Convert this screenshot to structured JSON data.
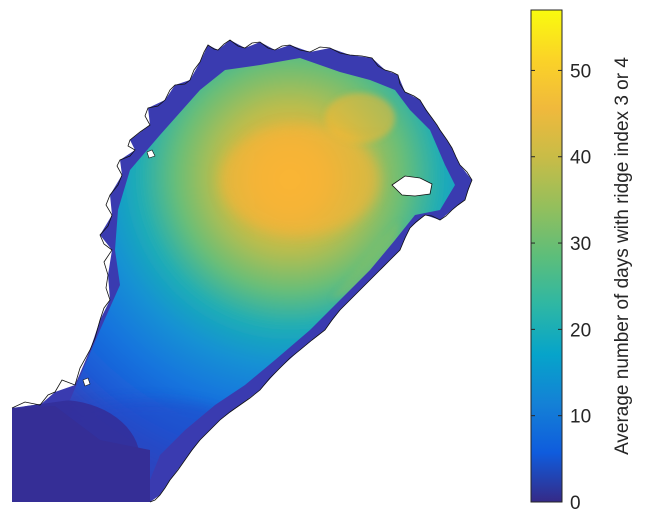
{
  "colorbar": {
    "label": "Average number of days with ridge index 3 or 4",
    "min": 0,
    "max": 57,
    "ticks": [
      {
        "value": 0,
        "label": "0"
      },
      {
        "value": 10,
        "label": "10"
      },
      {
        "value": 20,
        "label": "20"
      },
      {
        "value": 30,
        "label": "30"
      },
      {
        "value": 40,
        "label": "40"
      },
      {
        "value": 50,
        "label": "50"
      }
    ],
    "colormap": "parula"
  },
  "map": {
    "region": "Bay of Bothnia (Gulf of Bothnia)",
    "land_color": "#ffffff",
    "coastline_color": "#000000",
    "peak_value": 50,
    "edge_value": 3,
    "min_value": 0
  }
}
